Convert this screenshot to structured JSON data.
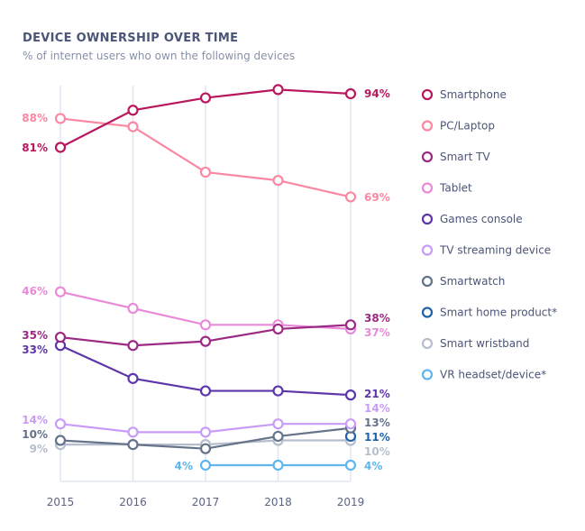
{
  "chart_data": {
    "type": "line",
    "title": "DEVICE OWNERSHIP OVER TIME",
    "subtitle": "% of internet users who own the following devices",
    "x": [
      "2015",
      "2016",
      "2017",
      "2018",
      "2019"
    ],
    "ylim": [
      0,
      100
    ],
    "grid": "vertical",
    "legend": "right",
    "series": [
      {
        "name": "Smartphone",
        "color": "#b8175e",
        "values": [
          81,
          90,
          93,
          95,
          94
        ],
        "start_label": "81%",
        "end_label": "94%"
      },
      {
        "name": "PC/Laptop",
        "color": "#fb88a2",
        "values": [
          88,
          86,
          75,
          73,
          69
        ],
        "start_label": "88%",
        "end_label": "69%"
      },
      {
        "name": "Smart TV",
        "color": "#9c2a84",
        "values": [
          35,
          33,
          34,
          37,
          38
        ],
        "start_label": "35%",
        "end_label": "38%"
      },
      {
        "name": "Tablet",
        "color": "#e98ad9",
        "values": [
          46,
          42,
          38,
          38,
          37
        ],
        "start_label": "46%",
        "end_label": "37%"
      },
      {
        "name": "Games console",
        "color": "#5d36aa",
        "values": [
          33,
          25,
          22,
          22,
          21
        ],
        "start_label": "33%",
        "end_label": "21%"
      },
      {
        "name": "TV streaming device",
        "color": "#c89cf6",
        "values": [
          14,
          12,
          12,
          14,
          14
        ],
        "start_label": "14%",
        "end_label": "14%"
      },
      {
        "name": "Smartwatch",
        "color": "#65738a",
        "values": [
          10,
          9,
          8,
          11,
          13
        ],
        "start_label": "10%",
        "end_label": "13%"
      },
      {
        "name": "Smart home product*",
        "color": "#1f62a8",
        "values": [
          null,
          null,
          null,
          null,
          11
        ],
        "start_label": "",
        "end_label": "11%"
      },
      {
        "name": "Smart wristband",
        "color": "#b6bdcc",
        "values": [
          9,
          9,
          9,
          10,
          10
        ],
        "start_label": "9%",
        "end_label": "10%"
      },
      {
        "name": "VR headset/device*",
        "color": "#5fb5ec",
        "values": [
          null,
          null,
          4,
          4,
          4
        ],
        "start_label": "4%",
        "end_label": "4%"
      }
    ]
  }
}
